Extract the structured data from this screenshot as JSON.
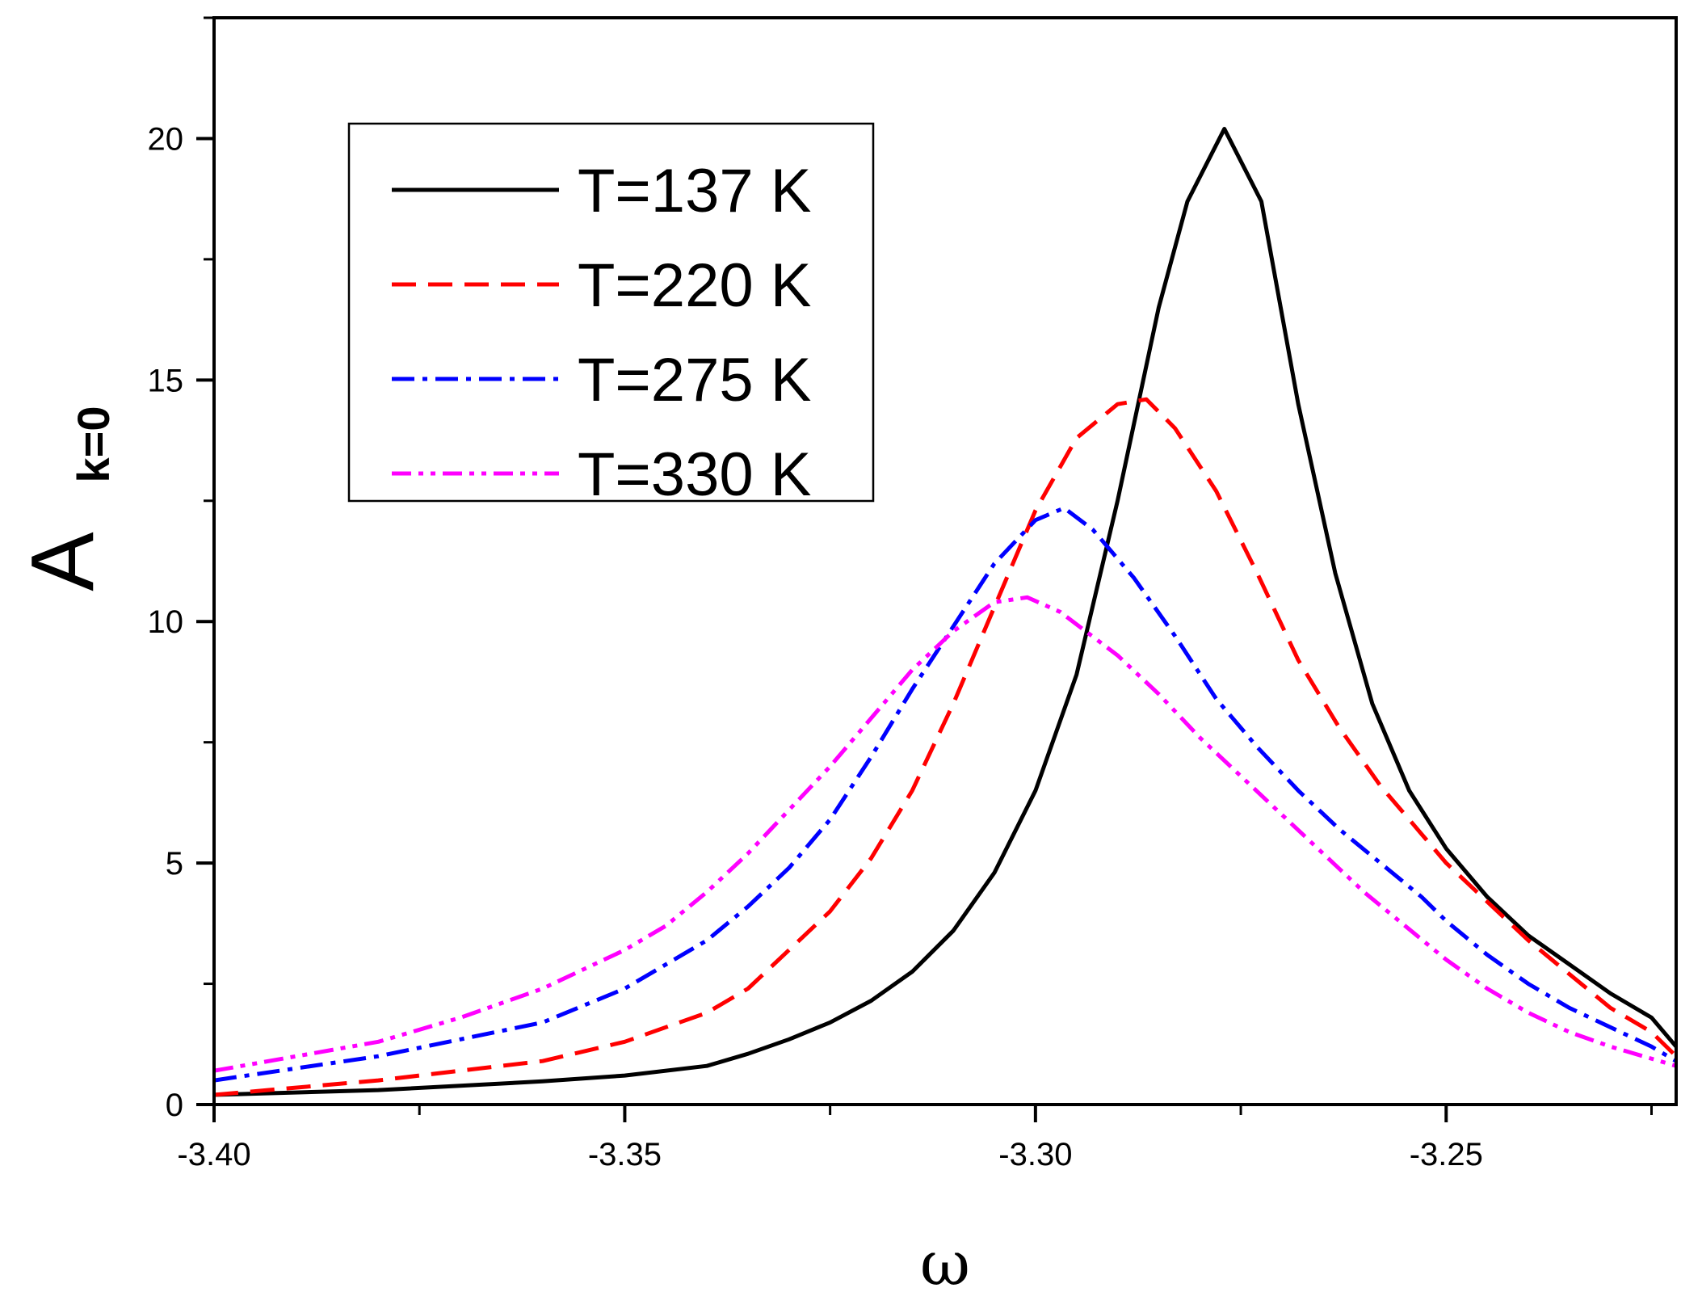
{
  "chart_data": {
    "type": "line",
    "xlabel": "ω",
    "ylabel": {
      "main": "A",
      "subscript": "k=0"
    },
    "xlim": [
      -3.4,
      -3.222
    ],
    "ylim": [
      0,
      22.5
    ],
    "x_ticks": [
      -3.4,
      -3.35,
      -3.3,
      -3.25
    ],
    "x_tick_labels": [
      "-3.40",
      "-3.35",
      "-3.30",
      "-3.25"
    ],
    "x_minor_ticks": [
      -3.375,
      -3.325,
      -3.275,
      -3.225
    ],
    "y_ticks": [
      0,
      5,
      10,
      15,
      20
    ],
    "y_tick_labels": [
      "0",
      "5",
      "10",
      "15",
      "20"
    ],
    "y_minor_ticks": [
      2.5,
      7.5,
      12.5,
      17.5,
      22.5
    ],
    "grid": false,
    "legend_position": "top-left",
    "series": [
      {
        "name": "T=137 K",
        "color": "#000000",
        "dash": "solid",
        "x": [
          -3.4,
          -3.38,
          -3.36,
          -3.35,
          -3.34,
          -3.335,
          -3.33,
          -3.325,
          -3.32,
          -3.315,
          -3.31,
          -3.305,
          -3.3,
          -3.295,
          -3.29,
          -3.285,
          -3.2815,
          -3.277,
          -3.2725,
          -3.268,
          -3.2635,
          -3.259,
          -3.2545,
          -3.25,
          -3.245,
          -3.24,
          -3.235,
          -3.23,
          -3.225,
          -3.222
        ],
        "y": [
          0.2,
          0.3,
          0.48,
          0.6,
          0.8,
          1.05,
          1.35,
          1.7,
          2.15,
          2.75,
          3.6,
          4.8,
          6.5,
          8.9,
          12.5,
          16.5,
          18.7,
          20.2,
          18.7,
          14.5,
          11.0,
          8.3,
          6.5,
          5.3,
          4.3,
          3.5,
          2.9,
          2.3,
          1.8,
          1.2
        ]
      },
      {
        "name": "T=220 K",
        "color": "#ff0000",
        "dash": "dashed",
        "x": [
          -3.4,
          -3.38,
          -3.36,
          -3.35,
          -3.34,
          -3.335,
          -3.33,
          -3.325,
          -3.32,
          -3.315,
          -3.31,
          -3.305,
          -3.3,
          -3.295,
          -3.29,
          -3.2865,
          -3.283,
          -3.278,
          -3.273,
          -3.268,
          -3.263,
          -3.258,
          -3.253,
          -3.25,
          -3.245,
          -3.24,
          -3.235,
          -3.23,
          -3.225,
          -3.222
        ],
        "y": [
          0.2,
          0.5,
          0.9,
          1.3,
          1.9,
          2.4,
          3.2,
          4.0,
          5.1,
          6.5,
          8.3,
          10.3,
          12.3,
          13.8,
          14.5,
          14.6,
          14.0,
          12.7,
          11.0,
          9.2,
          7.8,
          6.6,
          5.6,
          5.0,
          4.2,
          3.4,
          2.7,
          2.0,
          1.5,
          1.0
        ]
      },
      {
        "name": "T=275 K",
        "color": "#0000ff",
        "dash": "dashdot",
        "x": [
          -3.4,
          -3.38,
          -3.36,
          -3.35,
          -3.34,
          -3.335,
          -3.33,
          -3.325,
          -3.32,
          -3.315,
          -3.31,
          -3.305,
          -3.3,
          -3.2965,
          -3.293,
          -3.288,
          -3.283,
          -3.278,
          -3.273,
          -3.268,
          -3.263,
          -3.258,
          -3.253,
          -3.25,
          -3.245,
          -3.24,
          -3.235,
          -3.23,
          -3.225,
          -3.222
        ],
        "y": [
          0.5,
          1.0,
          1.7,
          2.4,
          3.4,
          4.1,
          4.9,
          5.9,
          7.2,
          8.6,
          9.9,
          11.2,
          12.1,
          12.35,
          11.9,
          10.9,
          9.7,
          8.4,
          7.4,
          6.5,
          5.7,
          5.0,
          4.3,
          3.8,
          3.1,
          2.5,
          2.0,
          1.6,
          1.2,
          0.9
        ]
      },
      {
        "name": "T=330 K",
        "color": "#ff00ff",
        "dash": "dashdotdot",
        "x": [
          -3.4,
          -3.38,
          -3.37,
          -3.36,
          -3.35,
          -3.345,
          -3.34,
          -3.335,
          -3.33,
          -3.325,
          -3.32,
          -3.315,
          -3.31,
          -3.305,
          -3.301,
          -3.297,
          -3.29,
          -3.285,
          -3.28,
          -3.275,
          -3.27,
          -3.265,
          -3.26,
          -3.255,
          -3.25,
          -3.245,
          -3.24,
          -3.235,
          -3.23,
          -3.222
        ],
        "y": [
          0.7,
          1.3,
          1.8,
          2.4,
          3.2,
          3.7,
          4.4,
          5.2,
          6.1,
          7.0,
          8.0,
          9.0,
          9.8,
          10.4,
          10.5,
          10.2,
          9.3,
          8.5,
          7.6,
          6.8,
          6.0,
          5.2,
          4.4,
          3.7,
          3.0,
          2.4,
          1.9,
          1.5,
          1.2,
          0.8
        ]
      }
    ]
  }
}
